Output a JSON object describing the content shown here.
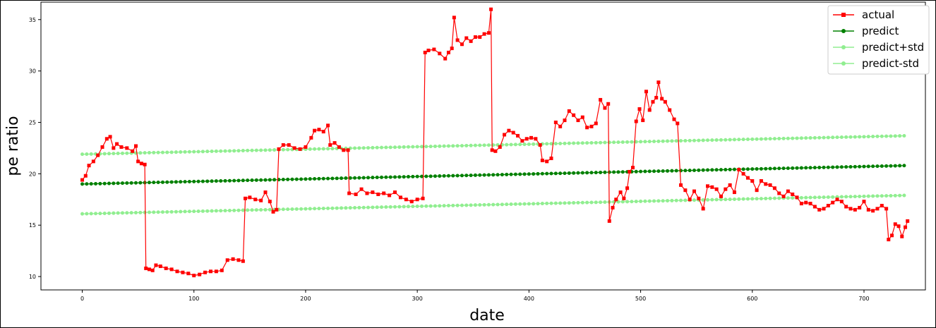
{
  "chart_data": {
    "type": "line",
    "title": "",
    "xlabel": "date",
    "ylabel": "pe ratio",
    "xlim": [
      -37,
      755
    ],
    "ylim": [
      8.7,
      36.7
    ],
    "xticks": [
      0,
      100,
      200,
      300,
      400,
      500,
      600,
      700
    ],
    "yticks": [
      10,
      15,
      20,
      25,
      30,
      35
    ],
    "grid": false,
    "legend_position": "top-right",
    "series": [
      {
        "name": "actual",
        "color": "#ff0000",
        "marker": "square",
        "points": [
          [
            0,
            19.4
          ],
          [
            3,
            19.8
          ],
          [
            6,
            20.8
          ],
          [
            10,
            21.2
          ],
          [
            14,
            21.8
          ],
          [
            18,
            22.6
          ],
          [
            22,
            23.4
          ],
          [
            25,
            23.6
          ],
          [
            28,
            22.5
          ],
          [
            31,
            22.9
          ],
          [
            35,
            22.6
          ],
          [
            40,
            22.5
          ],
          [
            45,
            22.2
          ],
          [
            48,
            22.7
          ],
          [
            50,
            21.2
          ],
          [
            53,
            21.0
          ],
          [
            56,
            20.9
          ],
          [
            57,
            10.8
          ],
          [
            60,
            10.7
          ],
          [
            63,
            10.6
          ],
          [
            66,
            11.1
          ],
          [
            70,
            11.0
          ],
          [
            75,
            10.8
          ],
          [
            80,
            10.7
          ],
          [
            85,
            10.5
          ],
          [
            90,
            10.4
          ],
          [
            95,
            10.3
          ],
          [
            100,
            10.1
          ],
          [
            105,
            10.2
          ],
          [
            110,
            10.4
          ],
          [
            115,
            10.5
          ],
          [
            120,
            10.5
          ],
          [
            125,
            10.6
          ],
          [
            130,
            11.6
          ],
          [
            135,
            11.7
          ],
          [
            140,
            11.6
          ],
          [
            144,
            11.5
          ],
          [
            146,
            17.6
          ],
          [
            150,
            17.7
          ],
          [
            155,
            17.5
          ],
          [
            160,
            17.4
          ],
          [
            164,
            18.2
          ],
          [
            168,
            17.3
          ],
          [
            171,
            16.3
          ],
          [
            174,
            16.5
          ],
          [
            176,
            22.4
          ],
          [
            180,
            22.8
          ],
          [
            185,
            22.8
          ],
          [
            190,
            22.5
          ],
          [
            195,
            22.4
          ],
          [
            200,
            22.6
          ],
          [
            205,
            23.5
          ],
          [
            208,
            24.2
          ],
          [
            212,
            24.3
          ],
          [
            216,
            24.1
          ],
          [
            220,
            24.7
          ],
          [
            222,
            22.8
          ],
          [
            226,
            23.0
          ],
          [
            230,
            22.6
          ],
          [
            234,
            22.3
          ],
          [
            238,
            22.3
          ],
          [
            239,
            18.1
          ],
          [
            245,
            18.0
          ],
          [
            250,
            18.5
          ],
          [
            255,
            18.1
          ],
          [
            260,
            18.2
          ],
          [
            265,
            18.0
          ],
          [
            270,
            18.1
          ],
          [
            275,
            17.9
          ],
          [
            280,
            18.2
          ],
          [
            285,
            17.7
          ],
          [
            290,
            17.5
          ],
          [
            295,
            17.3
          ],
          [
            300,
            17.5
          ],
          [
            305,
            17.6
          ],
          [
            307,
            31.8
          ],
          [
            310,
            32.0
          ],
          [
            315,
            32.1
          ],
          [
            320,
            31.7
          ],
          [
            325,
            31.2
          ],
          [
            328,
            31.8
          ],
          [
            331,
            32.2
          ],
          [
            333,
            35.2
          ],
          [
            336,
            33.0
          ],
          [
            340,
            32.6
          ],
          [
            344,
            33.2
          ],
          [
            348,
            32.9
          ],
          [
            352,
            33.3
          ],
          [
            356,
            33.3
          ],
          [
            360,
            33.6
          ],
          [
            364,
            33.7
          ],
          [
            366,
            36.0
          ],
          [
            367,
            22.3
          ],
          [
            370,
            22.2
          ],
          [
            374,
            22.6
          ],
          [
            378,
            23.8
          ],
          [
            382,
            24.2
          ],
          [
            386,
            24.0
          ],
          [
            390,
            23.7
          ],
          [
            394,
            23.2
          ],
          [
            398,
            23.4
          ],
          [
            402,
            23.5
          ],
          [
            406,
            23.4
          ],
          [
            410,
            22.8
          ],
          [
            412,
            21.3
          ],
          [
            416,
            21.2
          ],
          [
            420,
            21.5
          ],
          [
            424,
            25.0
          ],
          [
            428,
            24.6
          ],
          [
            432,
            25.2
          ],
          [
            436,
            26.1
          ],
          [
            440,
            25.7
          ],
          [
            444,
            25.2
          ],
          [
            448,
            25.5
          ],
          [
            452,
            24.5
          ],
          [
            456,
            24.6
          ],
          [
            460,
            24.9
          ],
          [
            464,
            27.2
          ],
          [
            468,
            26.4
          ],
          [
            471,
            26.8
          ],
          [
            472,
            15.4
          ],
          [
            475,
            16.7
          ],
          [
            478,
            17.5
          ],
          [
            482,
            18.2
          ],
          [
            485,
            17.6
          ],
          [
            488,
            18.6
          ],
          [
            490,
            20.2
          ],
          [
            493,
            20.6
          ],
          [
            496,
            25.1
          ],
          [
            499,
            26.3
          ],
          [
            502,
            25.2
          ],
          [
            505,
            28.0
          ],
          [
            508,
            26.2
          ],
          [
            511,
            27.0
          ],
          [
            514,
            27.4
          ],
          [
            516,
            28.9
          ],
          [
            519,
            27.3
          ],
          [
            522,
            27.0
          ],
          [
            526,
            26.2
          ],
          [
            530,
            25.3
          ],
          [
            533,
            24.9
          ],
          [
            536,
            18.9
          ],
          [
            540,
            18.4
          ],
          [
            544,
            17.5
          ],
          [
            548,
            18.3
          ],
          [
            552,
            17.6
          ],
          [
            556,
            16.6
          ],
          [
            560,
            18.8
          ],
          [
            564,
            18.7
          ],
          [
            568,
            18.5
          ],
          [
            572,
            17.8
          ],
          [
            576,
            18.5
          ],
          [
            580,
            18.9
          ],
          [
            584,
            18.2
          ],
          [
            588,
            20.4
          ],
          [
            592,
            20.0
          ],
          [
            596,
            19.6
          ],
          [
            600,
            19.3
          ],
          [
            604,
            18.4
          ],
          [
            608,
            19.3
          ],
          [
            612,
            19.0
          ],
          [
            616,
            18.9
          ],
          [
            620,
            18.6
          ],
          [
            624,
            18.1
          ],
          [
            628,
            17.8
          ],
          [
            632,
            18.3
          ],
          [
            636,
            18.0
          ],
          [
            640,
            17.7
          ],
          [
            644,
            17.1
          ],
          [
            648,
            17.2
          ],
          [
            652,
            17.1
          ],
          [
            656,
            16.8
          ],
          [
            660,
            16.5
          ],
          [
            664,
            16.6
          ],
          [
            668,
            16.9
          ],
          [
            672,
            17.2
          ],
          [
            676,
            17.5
          ],
          [
            680,
            17.3
          ],
          [
            684,
            16.8
          ],
          [
            688,
            16.6
          ],
          [
            692,
            16.5
          ],
          [
            696,
            16.7
          ],
          [
            700,
            17.3
          ],
          [
            704,
            16.5
          ],
          [
            708,
            16.4
          ],
          [
            712,
            16.6
          ],
          [
            716,
            16.9
          ],
          [
            720,
            16.6
          ],
          [
            722,
            13.6
          ],
          [
            725,
            14.0
          ],
          [
            728,
            15.1
          ],
          [
            731,
            14.9
          ],
          [
            734,
            13.9
          ],
          [
            737,
            14.8
          ],
          [
            739,
            15.4
          ]
        ]
      },
      {
        "name": "predict",
        "color": "#008000",
        "marker": "circle",
        "start": [
          0,
          19.0
        ],
        "end": [
          739,
          20.8
        ],
        "step": 4
      },
      {
        "name": "predict+std",
        "color": "#90ee90",
        "marker": "circle",
        "start": [
          0,
          21.9
        ],
        "end": [
          739,
          23.7
        ],
        "step": 4
      },
      {
        "name": "predict-std",
        "color": "#90ee90",
        "marker": "circle",
        "start": [
          0,
          16.1
        ],
        "end": [
          739,
          17.9
        ],
        "step": 4
      }
    ]
  }
}
